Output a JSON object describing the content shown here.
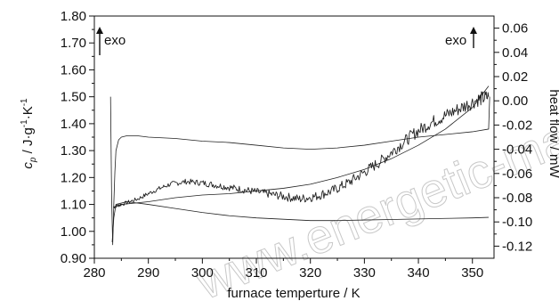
{
  "chart_data": {
    "type": "line",
    "xlabel": "furnace temperture / K",
    "ylabel_left": "c_p / J·g^-1·K^-1",
    "ylabel_right": "heat flow / mW",
    "xlim": [
      280,
      354
    ],
    "ylim_left": [
      0.9,
      1.8
    ],
    "ylim_right": [
      -0.13,
      0.07
    ],
    "x_ticks": [
      "280",
      "290",
      "300",
      "310",
      "320",
      "330",
      "340",
      "350"
    ],
    "y_left_ticks": [
      "0.90",
      "1.00",
      "1.10",
      "1.20",
      "1.30",
      "1.40",
      "1.50",
      "1.60",
      "1.70",
      "1.80"
    ],
    "y_right_ticks": [
      "-0.12",
      "-0.10",
      "-0.08",
      "-0.06",
      "-0.04",
      "-0.02",
      "0.00",
      "0.02",
      "0.04",
      "0.06"
    ],
    "annotations": [
      {
        "text": "exo",
        "position": "top-left"
      },
      {
        "text": "exo",
        "position": "top-right"
      }
    ],
    "watermark": "www.energetic-materials",
    "grid": false,
    "series": [
      {
        "axis": "left",
        "style": "thin",
        "x": [
          283.0,
          283.2,
          283.4,
          283.6,
          283.8,
          284.0,
          284.5,
          285.0,
          286,
          288,
          290,
          295,
          300,
          305,
          310,
          315,
          320,
          325,
          330,
          335,
          340,
          345,
          350,
          353.0,
          353.2
        ],
        "y": [
          1.5,
          1.12,
          0.95,
          1.1,
          1.22,
          1.3,
          1.34,
          1.35,
          1.355,
          1.355,
          1.35,
          1.345,
          1.335,
          1.33,
          1.32,
          1.31,
          1.305,
          1.31,
          1.32,
          1.335,
          1.35,
          1.36,
          1.37,
          1.38,
          1.5
        ]
      },
      {
        "axis": "left",
        "style": "thin",
        "x": [
          283.3,
          283.6,
          284,
          286,
          290,
          295,
          300,
          305,
          310,
          315,
          320,
          325,
          330,
          335,
          340,
          345,
          350,
          353
        ],
        "y": [
          0.96,
          1.05,
          1.1,
          1.11,
          1.1,
          1.085,
          1.07,
          1.058,
          1.05,
          1.045,
          1.04,
          1.04,
          1.042,
          1.044,
          1.046,
          1.048,
          1.05,
          1.052
        ]
      },
      {
        "axis": "left",
        "style": "smooth",
        "x": [
          283.5,
          285,
          290,
          295,
          300,
          305,
          310,
          315,
          320,
          325,
          330,
          335,
          340,
          345,
          350,
          353
        ],
        "y": [
          1.09,
          1.1,
          1.11,
          1.125,
          1.135,
          1.14,
          1.15,
          1.16,
          1.175,
          1.2,
          1.23,
          1.27,
          1.32,
          1.38,
          1.46,
          1.54
        ]
      },
      {
        "axis": "left",
        "style": "noisy",
        "x": [
          283.5,
          285,
          288,
          291,
          294,
          297,
          300,
          303,
          306,
          309,
          312,
          315,
          318,
          321,
          324,
          327,
          330,
          333,
          336,
          339,
          342,
          345,
          348,
          351,
          353
        ],
        "y": [
          1.09,
          1.1,
          1.12,
          1.15,
          1.175,
          1.185,
          1.18,
          1.17,
          1.16,
          1.15,
          1.14,
          1.13,
          1.12,
          1.13,
          1.15,
          1.18,
          1.22,
          1.26,
          1.31,
          1.36,
          1.4,
          1.43,
          1.46,
          1.49,
          1.5
        ]
      }
    ]
  }
}
